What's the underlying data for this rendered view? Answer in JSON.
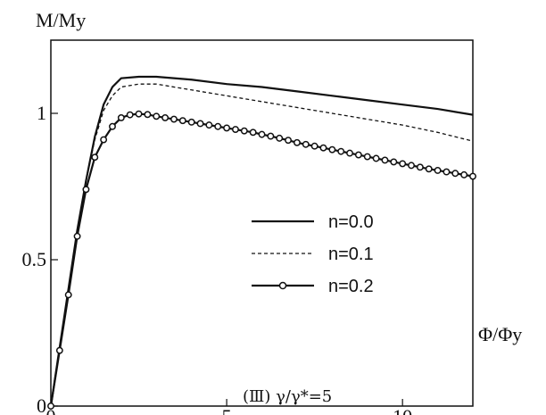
{
  "chart_data": {
    "type": "line",
    "ylabel": "M/My",
    "xlabel": "Φ/Φy",
    "caption": "(Ⅲ) γ/γ*=5",
    "xlim": [
      0,
      12
    ],
    "ylim": [
      0,
      1.25
    ],
    "x_ticks": [
      {
        "value": 0,
        "label": "0"
      },
      {
        "value": 5,
        "label": "5"
      },
      {
        "value": 10,
        "label": "10"
      }
    ],
    "y_ticks": [
      {
        "value": 0,
        "label": "0"
      },
      {
        "value": 0.5,
        "label": "0.5"
      },
      {
        "value": 1,
        "label": "1"
      }
    ],
    "grid": false,
    "legend_position": "center-right",
    "series": [
      {
        "name": "n=0.0",
        "style": "solid",
        "x": [
          0,
          0.25,
          0.5,
          0.75,
          1.0,
          1.25,
          1.5,
          1.75,
          2.0,
          2.5,
          3.0,
          4,
          5,
          6,
          7,
          8,
          9,
          10,
          11,
          12
        ],
        "y": [
          0,
          0.2,
          0.4,
          0.6,
          0.77,
          0.92,
          1.03,
          1.09,
          1.12,
          1.125,
          1.125,
          1.115,
          1.1,
          1.09,
          1.075,
          1.06,
          1.045,
          1.03,
          1.015,
          0.995
        ]
      },
      {
        "name": "n=0.1",
        "style": "dashed",
        "x": [
          0,
          0.25,
          0.5,
          0.75,
          1.0,
          1.25,
          1.5,
          1.75,
          2.0,
          2.5,
          3.0,
          4,
          5,
          6,
          7,
          8,
          9,
          10,
          11,
          12
        ],
        "y": [
          0,
          0.2,
          0.4,
          0.6,
          0.77,
          0.91,
          1.01,
          1.06,
          1.09,
          1.1,
          1.1,
          1.08,
          1.06,
          1.04,
          1.02,
          1.0,
          0.98,
          0.96,
          0.935,
          0.905
        ]
      },
      {
        "name": "n=0.2",
        "style": "solid-circles",
        "x": [
          0,
          0.25,
          0.5,
          0.75,
          1.0,
          1.25,
          1.5,
          1.75,
          2.0,
          2.25,
          2.5,
          2.75,
          3.0,
          3.25,
          3.5,
          3.75,
          4.0,
          4.25,
          4.5,
          4.75,
          5.0,
          5.25,
          5.5,
          5.75,
          6.0,
          6.25,
          6.5,
          6.75,
          7.0,
          7.25,
          7.5,
          7.75,
          8.0,
          8.25,
          8.5,
          8.75,
          9.0,
          9.25,
          9.5,
          9.75,
          10.0,
          10.25,
          10.5,
          10.75,
          11.0,
          11.25,
          11.5,
          11.75,
          12.0
        ],
        "y": [
          0,
          0.19,
          0.38,
          0.58,
          0.74,
          0.85,
          0.91,
          0.955,
          0.985,
          0.995,
          0.998,
          0.996,
          0.99,
          0.985,
          0.98,
          0.975,
          0.97,
          0.965,
          0.96,
          0.955,
          0.95,
          0.945,
          0.94,
          0.935,
          0.928,
          0.922,
          0.915,
          0.908,
          0.9,
          0.894,
          0.888,
          0.882,
          0.876,
          0.87,
          0.864,
          0.858,
          0.852,
          0.846,
          0.84,
          0.834,
          0.828,
          0.822,
          0.816,
          0.81,
          0.805,
          0.8,
          0.795,
          0.79,
          0.785
        ]
      }
    ]
  }
}
